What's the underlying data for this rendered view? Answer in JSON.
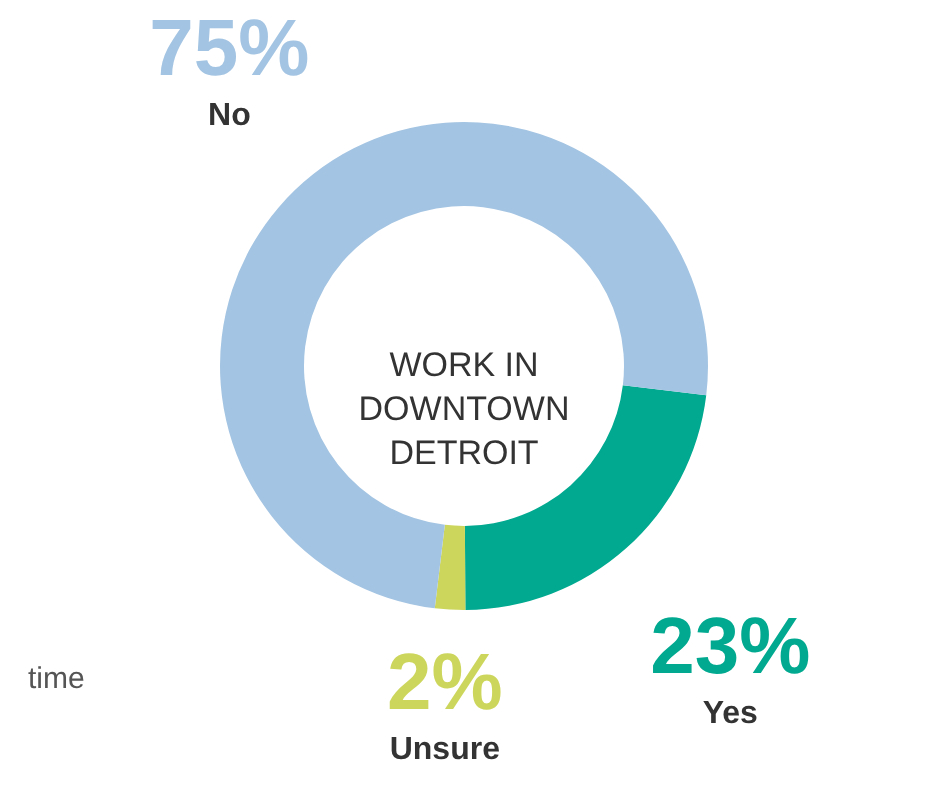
{
  "chart_data": {
    "type": "donut",
    "title": "WORK IN DOWNTOWN DETROIT",
    "categories": [
      "Yes",
      "Unsure",
      "No"
    ],
    "values": [
      23,
      2,
      75
    ],
    "value_labels": [
      "23%",
      "2%",
      "75%"
    ],
    "colors": [
      "#00a98f",
      "#cdd65c",
      "#a3c4e2"
    ],
    "annotations": [
      "time"
    ]
  }
}
